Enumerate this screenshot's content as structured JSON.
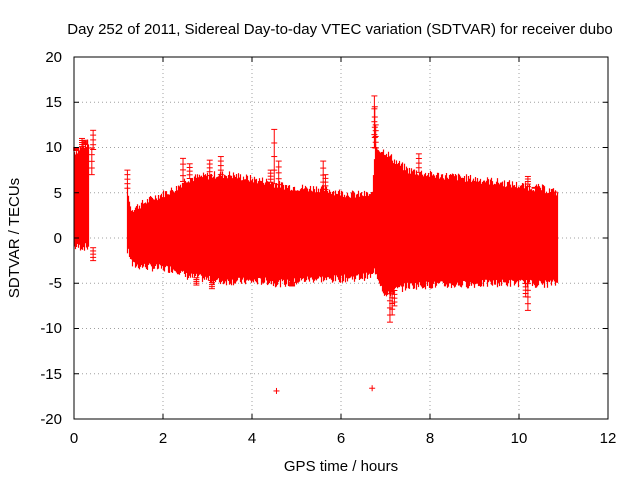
{
  "chart_data": {
    "type": "scatter",
    "title": "Day 252 of 2011, Sidereal Day-to-day VTEC variation (SDTVAR) for receiver dubo",
    "xlabel": "GPS time / hours",
    "ylabel": "SDTVAR / TECUs",
    "xlim": [
      0,
      12
    ],
    "ylim": [
      -20,
      20
    ],
    "xticks": [
      "0",
      "2",
      "4",
      "6",
      "8",
      "10",
      "12"
    ],
    "yticks": [
      "20",
      "15",
      "10",
      "5",
      "0",
      "-5",
      "-10",
      "-15",
      "-20"
    ],
    "grid": true,
    "color": "#ff0000",
    "series": [
      {
        "name": "SDTVAR",
        "envelope": {
          "x": [
            0.0,
            0.3,
            1.2,
            1.25,
            1.3,
            1.8,
            2.3,
            2.5,
            2.9,
            3.2,
            3.5,
            4.0,
            4.4,
            4.5,
            4.8,
            5.2,
            5.5,
            5.7,
            6.0,
            6.3,
            6.7,
            6.75,
            7.0,
            7.2,
            7.5,
            8.0,
            8.5,
            9.0,
            9.5,
            10.0,
            10.5,
            10.85
          ],
          "upper": [
            9.5,
            10.5,
            5.5,
            3.5,
            3.2,
            4.5,
            5.5,
            6.5,
            6.8,
            7.0,
            7.0,
            6.5,
            6.2,
            6.0,
            5.7,
            5.5,
            5.5,
            5.3,
            5.0,
            4.8,
            4.8,
            10.0,
            9.5,
            8.5,
            7.5,
            7.0,
            6.8,
            6.5,
            6.2,
            5.8,
            5.5,
            5.0
          ],
          "lower": [
            -1.0,
            -1.0,
            -1.5,
            -2.0,
            -3.0,
            -3.3,
            -3.5,
            -4.2,
            -4.5,
            -4.8,
            -4.8,
            -4.8,
            -4.8,
            -5.0,
            -5.0,
            -4.6,
            -4.5,
            -4.6,
            -4.5,
            -4.4,
            -4.2,
            -3.5,
            -6.5,
            -5.8,
            -5.3,
            -5.2,
            -5.2,
            -5.1,
            -5.0,
            -5.0,
            -5.1,
            -5.0
          ]
        },
        "segments": [
          [
            0.0,
            0.32
          ],
          [
            1.2,
            10.85
          ]
        ],
        "spikes": [
          {
            "x": 0.18,
            "y": 11.0
          },
          {
            "x": 0.25,
            "y": 10.8
          },
          {
            "x": 0.05,
            "y": 10.0
          },
          {
            "x": 0.43,
            "y": 11.9
          },
          {
            "x": 0.43,
            "y": -2.5
          },
          {
            "x": 0.4,
            "y": 7.0
          },
          {
            "x": 1.2,
            "y": 7.5
          },
          {
            "x": 2.45,
            "y": 8.8
          },
          {
            "x": 2.6,
            "y": 8.2
          },
          {
            "x": 2.75,
            "y": -5.2
          },
          {
            "x": 3.05,
            "y": 8.6
          },
          {
            "x": 3.3,
            "y": 9.0
          },
          {
            "x": 3.1,
            "y": -5.6
          },
          {
            "x": 4.5,
            "y": 12.0
          },
          {
            "x": 4.42,
            "y": 7.5
          },
          {
            "x": 4.6,
            "y": 8.5
          },
          {
            "x": 4.9,
            "y": -5.3
          },
          {
            "x": 5.6,
            "y": 8.5
          },
          {
            "x": 5.65,
            "y": 7.0
          },
          {
            "x": 6.75,
            "y": 15.7
          },
          {
            "x": 6.76,
            "y": 14.5
          },
          {
            "x": 6.78,
            "y": 12.5
          },
          {
            "x": 7.1,
            "y": -9.3
          },
          {
            "x": 7.15,
            "y": -8.5
          },
          {
            "x": 7.2,
            "y": -7.5
          },
          {
            "x": 7.75,
            "y": 9.3
          },
          {
            "x": 10.2,
            "y": 6.8
          },
          {
            "x": 10.2,
            "y": -8.0
          },
          {
            "x": 10.15,
            "y": -6.5
          },
          {
            "x": 10.35,
            "y": 5.5
          },
          {
            "x": 10.8,
            "y": 0.2
          }
        ],
        "outliers": [
          {
            "x": 4.55,
            "y": -16.9
          },
          {
            "x": 6.7,
            "y": -16.6
          }
        ]
      }
    ]
  }
}
